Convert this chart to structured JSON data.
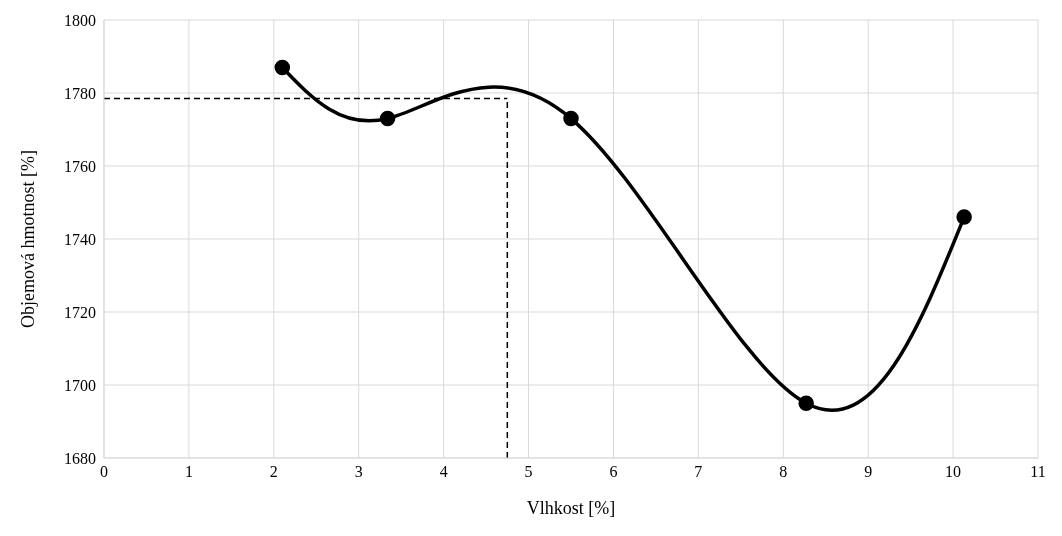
{
  "chart_data": {
    "type": "line",
    "xlabel": "Vlhkost [%]",
    "ylabel": "Objemová hmotnost [%]",
    "x": [
      2.1,
      3.34,
      5.5,
      8.27,
      10.13
    ],
    "series": [
      {
        "color": "#000000",
        "values": [
          1787,
          1773,
          1773,
          1695,
          1746
        ]
      }
    ],
    "xlim": [
      0,
      11
    ],
    "xticks": [
      0,
      1,
      2,
      3,
      4,
      5,
      6,
      7,
      8,
      9,
      10,
      11
    ],
    "ylim": [
      1680,
      1800
    ],
    "yticks": [
      1680,
      1700,
      1720,
      1740,
      1760,
      1780,
      1800
    ],
    "ref_lines": [
      {
        "axis": "x",
        "value": 4.75,
        "color": "#000000",
        "line_style": "dashed"
      },
      {
        "axis": "y",
        "value": 1778.5,
        "color": "#000000",
        "line_style": "dashed"
      }
    ],
    "grid": true,
    "marker": "circle",
    "line_style": "solid",
    "legend": false
  }
}
